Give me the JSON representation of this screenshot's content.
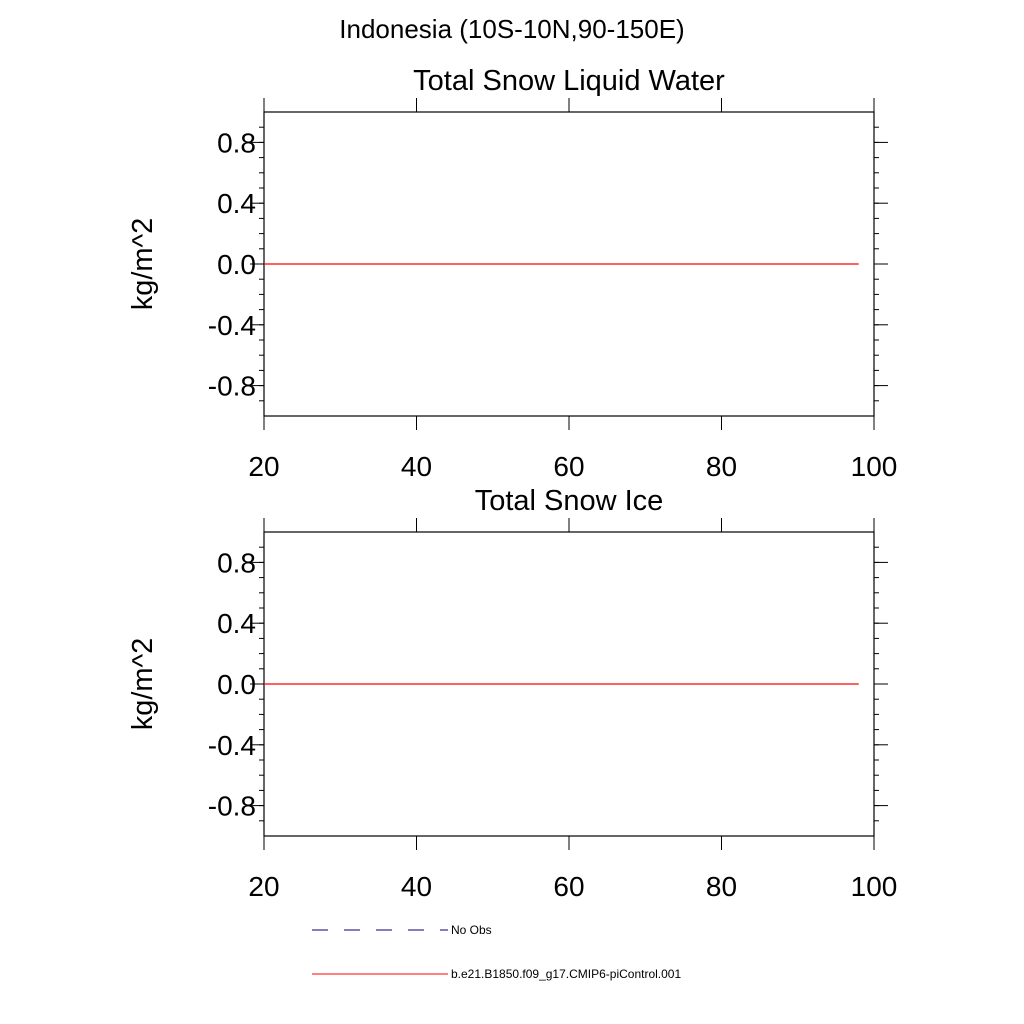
{
  "figure": {
    "main_title": "Indonesia (10S-10N,90-150E)"
  },
  "legend": {
    "items": [
      {
        "label": "No Obs",
        "color": "#000080",
        "style": "dashed"
      },
      {
        "label": "b.e21.B1850.f09_g17.CMIP6-piControl.001",
        "color": "#ff0000",
        "style": "solid"
      }
    ]
  },
  "chart_data": [
    {
      "type": "line",
      "title": "Total Snow Liquid Water",
      "xlabel": "",
      "ylabel": "kg/m^2",
      "xlim": [
        20,
        100
      ],
      "ylim": [
        -1,
        1
      ],
      "xticks": [
        20,
        40,
        60,
        80,
        100
      ],
      "yticks": [
        0.8,
        0.4,
        0.0,
        -0.4,
        -0.8
      ],
      "ytick_labels": [
        "0.8",
        "0.4",
        "0.0",
        "-0.4",
        "-0.8"
      ],
      "grid": false,
      "series": [
        {
          "name": "b.e21.B1850.f09_g17.CMIP6-piControl.001",
          "color": "#ff0000",
          "x": [
            20,
            98
          ],
          "y": [
            0.0,
            0.0
          ]
        }
      ]
    },
    {
      "type": "line",
      "title": "Total Snow Ice",
      "xlabel": "",
      "ylabel": "kg/m^2",
      "xlim": [
        20,
        100
      ],
      "ylim": [
        -1,
        1
      ],
      "xticks": [
        20,
        40,
        60,
        80,
        100
      ],
      "yticks": [
        0.8,
        0.4,
        0.0,
        -0.4,
        -0.8
      ],
      "ytick_labels": [
        "0.8",
        "0.4",
        "0.0",
        "-0.4",
        "-0.8"
      ],
      "grid": false,
      "series": [
        {
          "name": "b.e21.B1850.f09_g17.CMIP6-piControl.001",
          "color": "#ff0000",
          "x": [
            20,
            98
          ],
          "y": [
            0.0,
            0.0
          ]
        }
      ]
    }
  ]
}
